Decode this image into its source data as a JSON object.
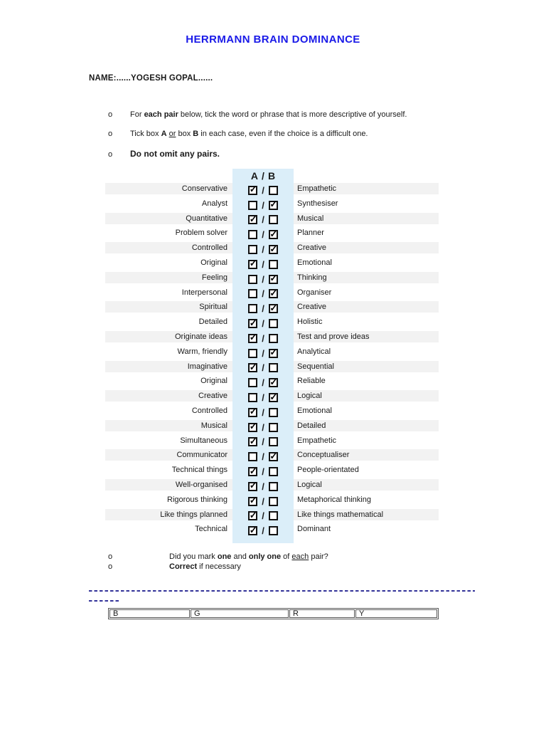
{
  "doc": {
    "title": "HERRMANN BRAIN DOMINANCE",
    "name_line": "NAME:......YOGESH GOPAL......"
  },
  "bullets": {
    "marker": "o",
    "b1": [
      "For ",
      "each pair",
      " below, tick the word or phrase that is more descriptive of yourself."
    ],
    "b2": [
      "Tick box ",
      "A",
      " ",
      "or",
      " box ",
      "B",
      " in each case, even if the choice is a difficult one."
    ],
    "b3": "Do not omit any pairs."
  },
  "table": {
    "header_a": "A",
    "header_slash": "/",
    "header_b": "B",
    "slash": "/",
    "check_glyph": "✓",
    "pairs": [
      {
        "a": "Conservative",
        "b": "Empathetic",
        "ticked": "A"
      },
      {
        "a": "Analyst",
        "b": "Synthesiser",
        "ticked": "B"
      },
      {
        "a": "Quantitative",
        "b": "Musical",
        "ticked": "A"
      },
      {
        "a": "Problem solver",
        "b": "Planner",
        "ticked": "B"
      },
      {
        "a": "Controlled",
        "b": "Creative",
        "ticked": "B"
      },
      {
        "a": "Original",
        "b": "Emotional",
        "ticked": "A"
      },
      {
        "a": "Feeling",
        "b": "Thinking",
        "ticked": "B"
      },
      {
        "a": "Interpersonal",
        "b": "Organiser",
        "ticked": "B"
      },
      {
        "a": "Spiritual",
        "b": "Creative",
        "ticked": "B"
      },
      {
        "a": "Detailed",
        "b": "Holistic",
        "ticked": "A"
      },
      {
        "a": "Originate ideas",
        "b": "Test and prove ideas",
        "ticked": "A"
      },
      {
        "a": "Warm, friendly",
        "b": "Analytical",
        "ticked": "B"
      },
      {
        "a": "Imaginative",
        "b": "Sequential",
        "ticked": "A"
      },
      {
        "a": "Original",
        "b": "Reliable",
        "ticked": "B"
      },
      {
        "a": "Creative",
        "b": "Logical",
        "ticked": "B"
      },
      {
        "a": "Controlled",
        "b": "Emotional",
        "ticked": "A"
      },
      {
        "a": "Musical",
        "b": "Detailed",
        "ticked": "A"
      },
      {
        "a": "Simultaneous",
        "b": "Empathetic",
        "ticked": "A"
      },
      {
        "a": "Communicator",
        "b": "Conceptualiser",
        "ticked": "B"
      },
      {
        "a": "Technical things",
        "b": "People-orientated",
        "ticked": "A"
      },
      {
        "a": "Well-organised",
        "b": "Logical",
        "ticked": "A"
      },
      {
        "a": "Rigorous thinking",
        "b": "Metaphorical thinking",
        "ticked": "A"
      },
      {
        "a": "Like things planned",
        "b": "Like things mathematical",
        "ticked": "A"
      },
      {
        "a": "Technical",
        "b": "Dominant",
        "ticked": "A"
      }
    ]
  },
  "footer": {
    "marker": "o",
    "check1": [
      "Did you mark ",
      "one",
      " and ",
      "only one",
      " of ",
      "each",
      " pair?"
    ],
    "check2": [
      "Correct",
      " if necessary"
    ],
    "score_cells": [
      "B",
      "G",
      "R",
      "Y"
    ]
  },
  "colors": {
    "title_blue": "#1a1ae8",
    "band_blue": "#dbeef9",
    "stripe_gray": "#f2f2f2",
    "dash_navy": "#333399"
  }
}
